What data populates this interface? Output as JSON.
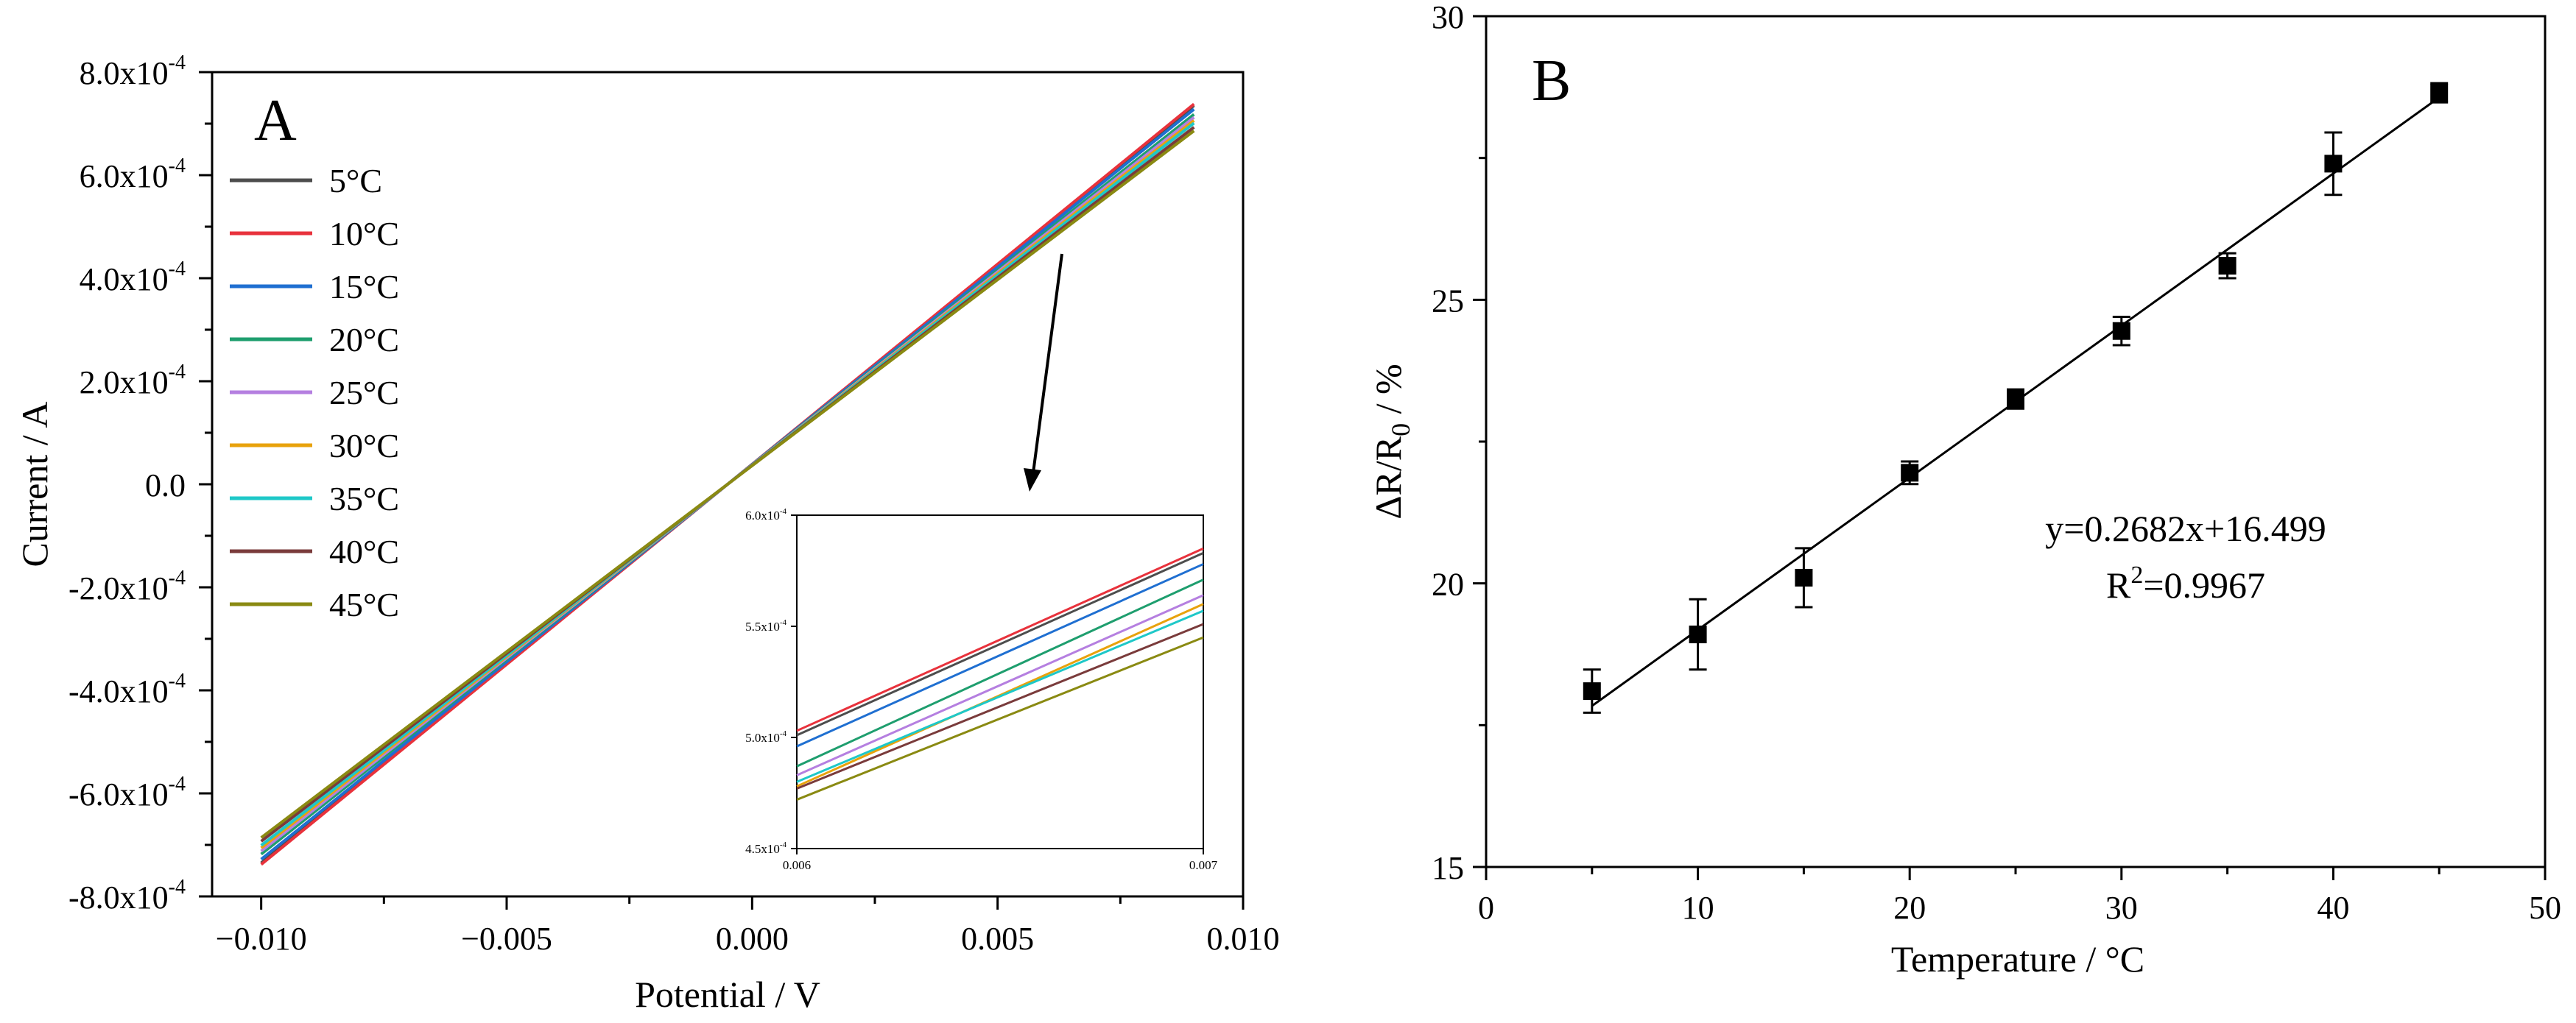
{
  "chart_data": [
    {
      "panel_label": "A",
      "type": "line",
      "xlabel": "Potential / V",
      "ylabel": "Current / A",
      "xlim": [
        -0.011,
        0.01
      ],
      "ylim": [
        -0.0008,
        0.0008
      ],
      "x": [
        -0.01,
        0.009
      ],
      "xtick_values": [
        -0.01,
        -0.005,
        0.0,
        0.005,
        0.01
      ],
      "xtick_labels": [
        "−0.010",
        "−0.005",
        "0.000",
        "0.005",
        "0.010"
      ],
      "ytick_values": [
        -0.0008,
        -0.0006,
        -0.0004,
        -0.0002,
        0,
        0.0002,
        0.0004,
        0.0006,
        0.0008
      ],
      "ytick_labels": [
        {
          "mant": "-8.0x10",
          "exp": "-4"
        },
        {
          "mant": "-6.0x10",
          "exp": "-4"
        },
        {
          "mant": "-4.0x10",
          "exp": "-4"
        },
        {
          "mant": "-2.0x10",
          "exp": "-4"
        },
        {
          "mant": "0.0",
          "exp": ""
        },
        {
          "mant": "2.0x10",
          "exp": "-4"
        },
        {
          "mant": "4.0x10",
          "exp": "-4"
        },
        {
          "mant": "6.0x10",
          "exp": "-4"
        },
        {
          "mant": "8.0x10",
          "exp": "-4"
        }
      ],
      "legend_position": "top-left",
      "series": [
        {
          "name": "5°C",
          "color": "#4d4d4d",
          "values": [
            -0.000735,
            0.000735
          ]
        },
        {
          "name": "10°C",
          "color": "#e8323c",
          "values": [
            -0.000738,
            0.000738
          ]
        },
        {
          "name": "15°C",
          "color": "#1f6fd1",
          "values": [
            -0.000728,
            0.000728
          ]
        },
        {
          "name": "20°C",
          "color": "#1e9e6e",
          "values": [
            -0.000718,
            0.000718
          ]
        },
        {
          "name": "25°C",
          "color": "#b57fe0",
          "values": [
            -0.000712,
            0.000712
          ]
        },
        {
          "name": "30°C",
          "color": "#e8a20c",
          "values": [
            -0.000706,
            0.000706
          ]
        },
        {
          "name": "35°C",
          "color": "#1ec8c8",
          "values": [
            -0.000701,
            0.000701
          ]
        },
        {
          "name": "40°C",
          "color": "#7a3b3b",
          "values": [
            -0.000693,
            0.000693
          ]
        },
        {
          "name": "45°C",
          "color": "#8a8a12",
          "values": [
            -0.000686,
            0.000686
          ]
        }
      ],
      "inset": {
        "xlim": [
          0.006,
          0.007
        ],
        "ylim": [
          0.00045,
          0.0006
        ],
        "xtick_labels": [
          "0.006",
          "0.007"
        ],
        "ytick_values": [
          0.00045,
          0.0005,
          0.00055,
          0.0006
        ],
        "ytick_labels": [
          "4.5x10",
          "5.0x10",
          "5.5x10",
          "6.0x10"
        ],
        "ytick_exp": "-4",
        "x": [
          0.006,
          0.007
        ],
        "series_values": [
          [
            0.000501,
            0.000583
          ],
          [
            0.000503,
            0.000585
          ],
          [
            0.000496,
            0.000578
          ],
          [
            0.000487,
            0.000571
          ],
          [
            0.000483,
            0.000564
          ],
          [
            0.000478,
            0.00056
          ],
          [
            0.00048,
            0.000557
          ],
          [
            0.000477,
            0.000551
          ],
          [
            0.000472,
            0.000545
          ]
        ]
      }
    },
    {
      "panel_label": "B",
      "type": "scatter",
      "xlabel_text": "Temperature / ",
      "xlabel_unit": "°C",
      "ylabel_parts": {
        "pre": "ΔR/R",
        "sub": "0",
        "post": " / %"
      },
      "xlim": [
        0,
        50
      ],
      "ylim": [
        15,
        30
      ],
      "xticks": [
        0,
        10,
        20,
        30,
        40,
        50
      ],
      "yticks": [
        15,
        20,
        25,
        30
      ],
      "x": [
        5,
        10,
        15,
        20,
        25,
        30,
        35,
        40,
        45
      ],
      "y": [
        18.1,
        19.1,
        20.1,
        21.95,
        23.25,
        24.45,
        25.6,
        27.4,
        28.65
      ],
      "yerr": [
        0.38,
        0.62,
        0.52,
        0.2,
        0.17,
        0.25,
        0.22,
        0.55,
        0.17
      ],
      "fit": {
        "slope": 0.2682,
        "intercept": 16.499,
        "x_range": [
          5,
          45
        ]
      },
      "equation_text": "y=0.2682x+16.499",
      "r2_parts": {
        "pre": "R",
        "sup": "2",
        "post": "=0.9967"
      }
    }
  ]
}
